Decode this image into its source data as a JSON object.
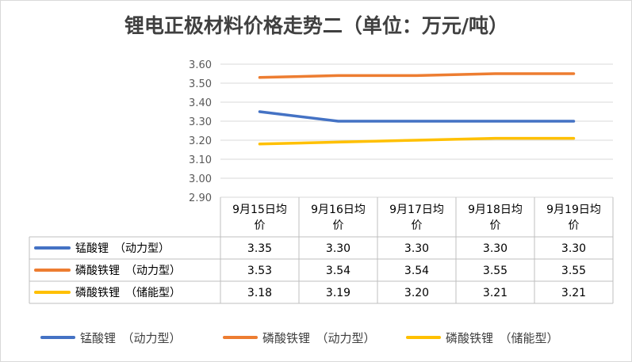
{
  "chart_data": {
    "type": "line",
    "title": "锂电正极材料价格走势二（单位：万元/吨）",
    "categories": [
      [
        "9月15日均",
        "价"
      ],
      [
        "9月16日均",
        "价"
      ],
      [
        "9月17日均",
        "价"
      ],
      [
        "9月18日均",
        "价"
      ],
      [
        "9月19日均",
        "价"
      ]
    ],
    "ylim": [
      2.9,
      3.6
    ],
    "yticks": [
      "2.90",
      "3.00",
      "3.10",
      "3.20",
      "3.30",
      "3.40",
      "3.50",
      "3.60"
    ],
    "grid": true,
    "legend_position": "bottom",
    "data_table": true,
    "series": [
      {
        "name": "锰酸锂　（动力型）",
        "color": "#4472c4",
        "values": [
          3.35,
          3.3,
          3.3,
          3.3,
          3.3
        ],
        "labels": [
          "3.35",
          "3.30",
          "3.30",
          "3.30",
          "3.30"
        ]
      },
      {
        "name": "磷酸铁锂　（动力型）",
        "color": "#ed7d31",
        "values": [
          3.53,
          3.54,
          3.54,
          3.55,
          3.55
        ],
        "labels": [
          "3.53",
          "3.54",
          "3.54",
          "3.55",
          "3.55"
        ]
      },
      {
        "name": "磷酸铁锂　（储能型）",
        "color": "#ffc000",
        "values": [
          3.18,
          3.19,
          3.2,
          3.21,
          3.21
        ],
        "labels": [
          "3.18",
          "3.19",
          "3.20",
          "3.21",
          "3.21"
        ]
      }
    ]
  }
}
